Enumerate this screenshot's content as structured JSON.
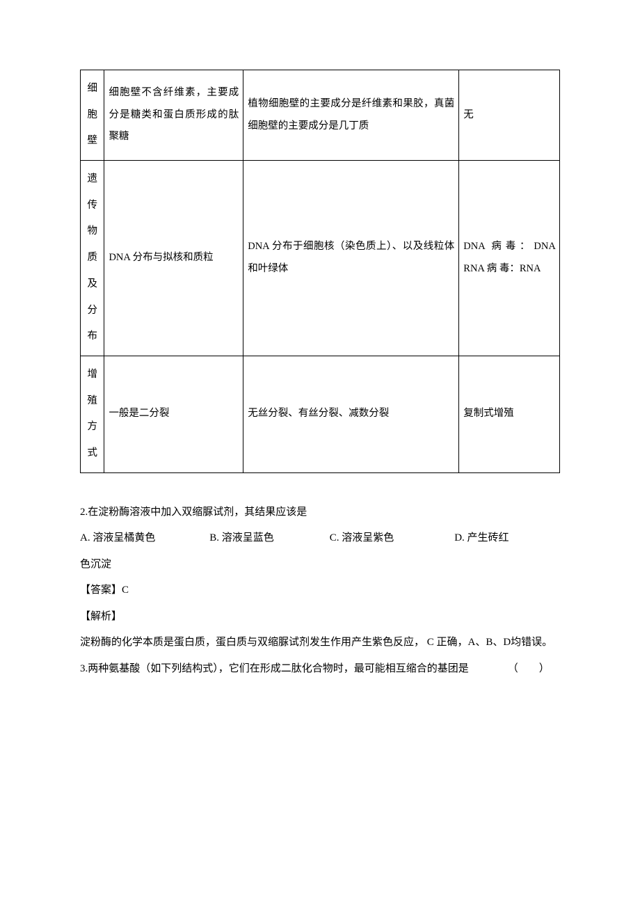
{
  "table": {
    "border_color": "#000000",
    "text_color": "#000000",
    "background_color": "#ffffff",
    "fontsize": 14.5,
    "line_height": 2.2,
    "columns": [
      {
        "width_pct": 5,
        "align": "center"
      },
      {
        "width_pct": 29,
        "align": "justify"
      },
      {
        "width_pct": 45,
        "align": "justify"
      },
      {
        "width_pct": 21,
        "align": "justify"
      }
    ],
    "rows": [
      {
        "label": "细胞壁",
        "c2": "细胞壁不含纤维素，主要成分是糖类和蛋白质形成的肽聚糖",
        "c3": "植物细胞壁的主要成分是纤维素和果胶，真菌细胞壁的主要成分是几丁质",
        "c4": "无"
      },
      {
        "label": "遗传物质及分布",
        "c2": "DNA 分布与拟核和质粒",
        "c3": "DNA 分布于细胞核（染色质上）、以及线粒体和叶绿体",
        "c4": "DNA 病毒：DNA　　RNA 病 毒：RNA"
      },
      {
        "label": "增殖方式",
        "c2": "一般是二分裂",
        "c3": "无丝分裂、有丝分裂、减数分裂",
        "c4": "复制式增殖"
      }
    ]
  },
  "content": {
    "text_color": "#000000",
    "fontsize": 15,
    "line_height": 2.5,
    "q2": {
      "stem": "2.在淀粉酶溶液中加入双缩脲试剂，其结果应该是",
      "option_a": "A. 溶液呈橘黄色",
      "option_b": "B. 溶液呈蓝色",
      "option_c": "C. 溶液呈紫色",
      "option_d_part1": "D. 产生砖红",
      "option_d_part2": "色沉淀",
      "answer_label": "【答案】C",
      "analysis_label": "【解析】",
      "analysis_text": "淀粉酶的化学本质是蛋白质，蛋白质与双缩脲试剂发生作用产生紫色反应， C 正确，A、B、D均错误。"
    },
    "q3": {
      "stem_pre": "3.两种氨基酸（如下列结构式），它们在形成二肽化合物时，最可能相互缩合的基团是",
      "stem_post": "（　　）"
    }
  }
}
